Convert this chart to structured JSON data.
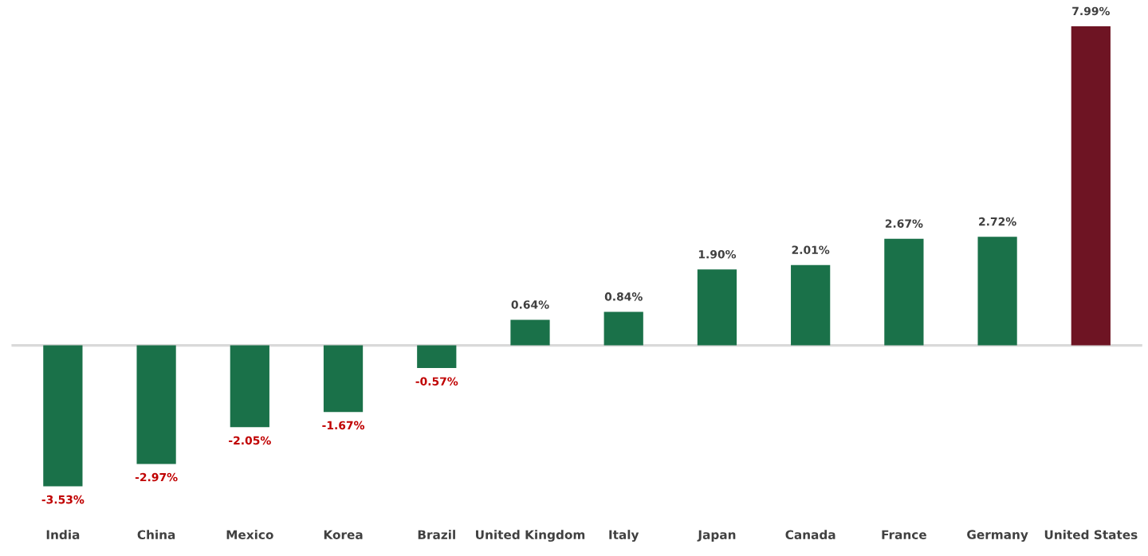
{
  "chart_data": {
    "type": "bar",
    "categories": [
      "India",
      "China",
      "Mexico",
      "Korea",
      "Brazil",
      "United Kingdom",
      "Italy",
      "Japan",
      "Canada",
      "France",
      "Germany",
      "United States"
    ],
    "values": [
      -3.53,
      -2.97,
      -2.05,
      -1.67,
      -0.57,
      0.64,
      0.84,
      1.9,
      2.01,
      2.67,
      2.72,
      7.99
    ],
    "value_labels": [
      "-3.53%",
      "-2.97%",
      "-2.05%",
      "-1.67%",
      "-0.57%",
      "0.64%",
      "0.84%",
      "1.90%",
      "2.01%",
      "2.67%",
      "2.72%",
      "7.99%"
    ],
    "colors": [
      "#1a7149",
      "#1a7149",
      "#1a7149",
      "#1a7149",
      "#1a7149",
      "#1a7149",
      "#1a7149",
      "#1a7149",
      "#1a7149",
      "#1a7149",
      "#1a7149",
      "#6e1423"
    ],
    "grid": false,
    "legend": false
  }
}
